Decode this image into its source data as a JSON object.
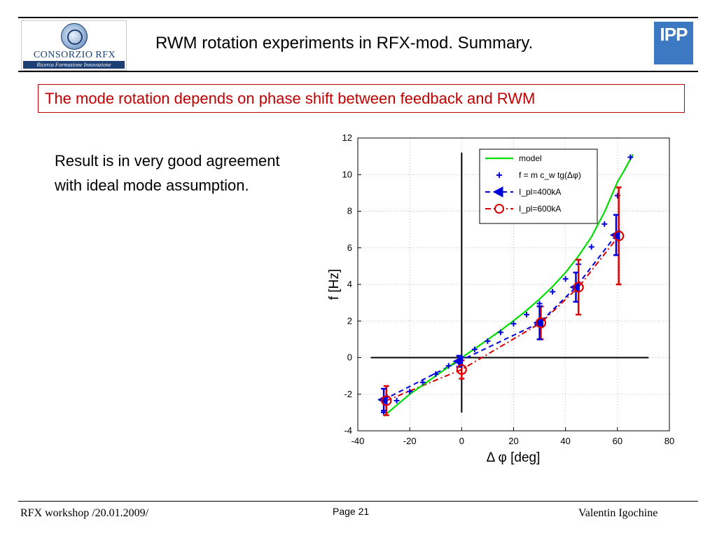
{
  "header": {
    "title": "RWM rotation experiments in RFX-mod. Summary.",
    "logo_left": {
      "name": "CONSORZIO RFX",
      "tagline": "Ricerca Formazione Innovazione"
    },
    "logo_right": {
      "name": "IPP"
    }
  },
  "subtitle": "The mode rotation depends on phase shift between feedback and RWM",
  "body": {
    "text": "Result is in very good agreement with ideal mode assumption."
  },
  "footer": {
    "left": "RFX workshop /20.01.2009/",
    "page": "Page 21",
    "right": "Valentin Igochine"
  },
  "colors": {
    "subtitle": "#c00000",
    "model": "#00dd00",
    "formula": "#0000dd",
    "ipl400": "#0000dd",
    "ipl600": "#dd0000"
  },
  "chart_data": {
    "type": "line",
    "xlabel": "Δ φ [deg]",
    "ylabel": "f [Hz]",
    "xlim": [
      -40,
      80
    ],
    "ylim": [
      -4,
      12
    ],
    "xticks": [
      -40,
      -20,
      0,
      20,
      40,
      60,
      80
    ],
    "yticks": [
      -4,
      -2,
      0,
      2,
      4,
      6,
      8,
      10,
      12
    ],
    "grid": true,
    "legend_position": "top-right",
    "reference_lines": {
      "x": 0,
      "y": 0
    },
    "series": [
      {
        "name": "model",
        "style": "solid-line",
        "x": [
          -30,
          -25,
          -20,
          -15,
          -10,
          -5,
          0,
          5,
          10,
          15,
          20,
          25,
          30,
          35,
          40,
          45,
          50,
          55,
          60,
          62.5,
          65,
          66
        ],
        "y": [
          -3.2,
          -2.6,
          -2.0,
          -1.5,
          -1.0,
          -0.5,
          0,
          0.48,
          0.98,
          1.48,
          2.02,
          2.58,
          3.2,
          3.88,
          4.65,
          5.55,
          6.6,
          7.95,
          9.6,
          10.2,
          10.85,
          11.1
        ]
      },
      {
        "name": "f = m c_w tg(Δφ)",
        "style": "plus-markers",
        "x": [
          -30,
          -25,
          -20,
          -15,
          -10,
          -5,
          0,
          5,
          10,
          15,
          20,
          25,
          30,
          35,
          40,
          45,
          50,
          55,
          60,
          65
        ],
        "y": [
          -3.0,
          -2.35,
          -1.85,
          -1.35,
          -0.9,
          -0.45,
          0,
          0.45,
          0.9,
          1.38,
          1.85,
          2.35,
          2.95,
          3.6,
          4.3,
          5.1,
          6.05,
          7.3,
          8.85,
          10.95
        ]
      },
      {
        "name": "I_pl=400kA",
        "style": "dashed-triangle",
        "x": [
          -30,
          -1,
          30,
          44,
          59.5
        ],
        "y": [
          -2.3,
          -0.2,
          1.9,
          3.85,
          6.7
        ],
        "err": [
          0.6,
          0.3,
          0.9,
          0.8,
          1.1
        ]
      },
      {
        "name": "I_pl=600kA",
        "style": "dashdot-circle",
        "x": [
          -29,
          0,
          30.5,
          45,
          60.5
        ],
        "y": [
          -2.35,
          -0.65,
          1.9,
          3.85,
          6.65
        ],
        "err": [
          0.8,
          0.5,
          0.9,
          1.5,
          2.65
        ]
      }
    ]
  }
}
